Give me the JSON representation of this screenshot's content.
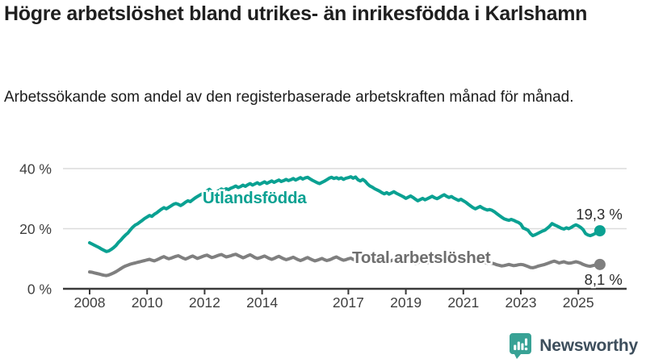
{
  "title": "Högre arbetslöshet bland utrikes- än inrikesfödda i Karlshamn",
  "subtitle": "Arbetssökande som andel av den registerbaserade arbetskraften månad för månad.",
  "branding": {
    "name": "Newsworthy",
    "icon": "newsworthy-bar-chart-bubble-icon",
    "icon_color": "#38a295",
    "text_color": "#3d4e5c"
  },
  "colors": {
    "accent_teal": "#0aa192",
    "series_gray": "#7f7f7f",
    "gridline": "#dcdcdc",
    "axis": "#3a3a3a",
    "tick_text": "#3f3f3f",
    "value_label_text": "#2b2b2b"
  },
  "chart_data": {
    "type": "line",
    "title": "Högre arbetslöshet bland utrikes- än inrikesfödda i Karlshamn",
    "xlabel": "",
    "ylabel": "",
    "frequency": "monthly",
    "x_start_year": 2008,
    "x_start_month": 1,
    "x_end_year": 2025,
    "x_end_month": 10,
    "ylim": [
      0,
      44
    ],
    "grid": "horizontal",
    "legend_position": "inline-annotations",
    "yticks": [
      {
        "value": 0,
        "label": "0 %"
      },
      {
        "value": 20,
        "label": "20 %"
      },
      {
        "value": 40,
        "label": "40 %"
      }
    ],
    "xticks": [
      {
        "value": 2008,
        "label": "2008"
      },
      {
        "value": 2010,
        "label": "2010"
      },
      {
        "value": 2012,
        "label": "2012"
      },
      {
        "value": 2014,
        "label": "2014"
      },
      {
        "value": 2017,
        "label": "2017"
      },
      {
        "value": 2019,
        "label": "2019"
      },
      {
        "value": 2021,
        "label": "2021"
      },
      {
        "value": 2023,
        "label": "2023"
      },
      {
        "value": 2025,
        "label": "2025"
      }
    ],
    "annotations": [
      {
        "text": "Utlandsfödda",
        "year": 2011.93,
        "value": 28.46,
        "color": "#0aa192"
      },
      {
        "text": "Total arbetslöshet",
        "year": 2017.13,
        "value": 8.59,
        "color": "#6e6e6e"
      }
    ],
    "series": [
      {
        "name": "Utlandsfödda",
        "color": "#0aa192",
        "end_label": "19,3 %",
        "end_value": 19.3,
        "values": [
          15.3,
          14.9,
          14.5,
          14.1,
          13.7,
          13.2,
          12.8,
          12.4,
          12.6,
          13.1,
          13.7,
          14.4,
          15.4,
          16.2,
          17.1,
          17.9,
          18.6,
          19.6,
          20.5,
          21.2,
          21.6,
          22.2,
          22.8,
          23.4,
          23.9,
          24.4,
          24.1,
          24.8,
          25.3,
          25.9,
          26.5,
          27.0,
          26.6,
          27.1,
          27.6,
          28.1,
          28.4,
          28.1,
          27.7,
          28.2,
          28.8,
          29.3,
          29.0,
          29.6,
          30.2,
          30.7,
          31.2,
          31.6,
          32.0,
          32.6,
          33.1,
          32.4,
          31.8,
          32.2,
          32.7,
          33.2,
          32.8,
          33.3,
          33.0,
          33.5,
          33.8,
          34.2,
          33.7,
          34.0,
          34.5,
          34.1,
          34.6,
          35.0,
          34.5,
          34.9,
          35.3,
          34.8,
          35.2,
          35.6,
          35.1,
          35.5,
          35.9,
          35.4,
          35.8,
          36.2,
          35.7,
          36.0,
          36.4,
          36.0,
          36.3,
          36.7,
          36.2,
          36.6,
          37.0,
          36.5,
          36.9,
          37.1,
          36.6,
          36.1,
          35.7,
          35.3,
          35.0,
          35.4,
          35.8,
          36.3,
          36.8,
          37.1,
          36.7,
          37.0,
          36.6,
          36.9,
          36.4,
          36.8,
          37.0,
          37.3,
          36.8,
          37.2,
          36.3,
          35.9,
          36.4,
          35.8,
          34.9,
          34.2,
          33.8,
          33.3,
          32.9,
          32.5,
          32.0,
          31.6,
          32.0,
          31.5,
          31.9,
          32.3,
          31.8,
          31.4,
          31.0,
          30.6,
          30.1,
          30.5,
          30.9,
          30.4,
          29.8,
          29.3,
          29.7,
          30.1,
          29.6,
          30.0,
          30.4,
          30.8,
          30.3,
          30.0,
          30.4,
          30.9,
          31.3,
          30.8,
          30.4,
          30.7,
          30.2,
          29.8,
          29.4,
          29.8,
          29.3,
          28.8,
          28.2,
          27.6,
          27.0,
          26.6,
          27.0,
          27.4,
          26.9,
          26.5,
          26.2,
          26.4,
          26.1,
          25.6,
          25.0,
          24.4,
          23.8,
          23.3,
          23.0,
          22.8,
          23.1,
          22.8,
          22.4,
          22.1,
          21.5,
          20.2,
          19.9,
          19.5,
          18.4,
          17.7,
          18.0,
          18.4,
          18.8,
          19.2,
          19.5,
          20.1,
          20.8,
          21.7,
          21.3,
          20.9,
          20.5,
          20.1,
          19.9,
          20.3,
          20.0,
          20.4,
          20.9,
          21.3,
          20.9,
          20.4,
          19.7,
          18.4,
          17.9,
          17.7,
          18.0,
          18.4,
          18.8,
          19.3
        ]
      },
      {
        "name": "Total arbetslöshet",
        "color": "#7f7f7f",
        "end_label": "8,1 %",
        "end_value": 8.1,
        "values": [
          5.6,
          5.5,
          5.3,
          5.1,
          4.9,
          4.7,
          4.5,
          4.4,
          4.6,
          4.9,
          5.3,
          5.7,
          6.2,
          6.7,
          7.2,
          7.6,
          7.9,
          8.2,
          8.4,
          8.6,
          8.8,
          9.0,
          9.2,
          9.4,
          9.6,
          9.8,
          9.5,
          9.3,
          9.6,
          10.0,
          10.4,
          10.7,
          10.3,
          10.0,
          10.2,
          10.5,
          10.8,
          11.0,
          10.6,
          10.2,
          9.9,
          10.2,
          10.6,
          10.9,
          10.5,
          10.1,
          10.4,
          10.7,
          11.0,
          11.2,
          10.8,
          10.4,
          10.6,
          10.9,
          11.2,
          11.4,
          11.0,
          10.6,
          10.8,
          11.0,
          11.3,
          11.5,
          11.1,
          10.7,
          10.3,
          10.6,
          11.0,
          11.3,
          10.9,
          10.4,
          10.1,
          10.3,
          10.6,
          10.9,
          10.5,
          10.1,
          9.8,
          10.1,
          10.5,
          10.8,
          10.4,
          10.0,
          9.7,
          9.9,
          10.2,
          10.5,
          10.1,
          9.7,
          9.4,
          9.7,
          10.1,
          10.4,
          10.0,
          9.6,
          9.3,
          9.5,
          9.8,
          10.1,
          9.7,
          9.4,
          9.6,
          9.9,
          10.3,
          10.6,
          10.2,
          9.8,
          9.5,
          9.7,
          10.0,
          10.2,
          9.8,
          9.5,
          9.2,
          9.5,
          9.9,
          10.2,
          9.8,
          9.4,
          9.1,
          9.3,
          9.6,
          9.8,
          9.4,
          9.0,
          8.7,
          9.0,
          9.4,
          9.7,
          9.3,
          8.9,
          8.6,
          8.8,
          9.1,
          9.3,
          8.9,
          8.6,
          8.4,
          8.7,
          9.1,
          9.4,
          9.0,
          8.7,
          8.9,
          9.1,
          9.4,
          9.7,
          10.2,
          11.0,
          11.4,
          11.6,
          11.8,
          11.6,
          11.2,
          10.9,
          10.7,
          10.8,
          10.9,
          10.7,
          10.3,
          9.9,
          9.5,
          9.2,
          9.4,
          9.6,
          9.2,
          8.8,
          8.5,
          8.6,
          8.5,
          8.3,
          8.0,
          7.8,
          7.6,
          7.7,
          7.9,
          8.1,
          7.9,
          7.7,
          7.8,
          8.0,
          8.1,
          8.0,
          7.7,
          7.4,
          7.1,
          7.0,
          7.2,
          7.5,
          7.7,
          7.9,
          8.1,
          8.4,
          8.7,
          9.0,
          9.2,
          8.9,
          8.6,
          8.8,
          9.0,
          8.7,
          8.5,
          8.6,
          8.8,
          9.0,
          8.8,
          8.5,
          8.1,
          7.8,
          7.6,
          7.5,
          7.7,
          7.9,
          8.0,
          8.1
        ]
      }
    ]
  }
}
